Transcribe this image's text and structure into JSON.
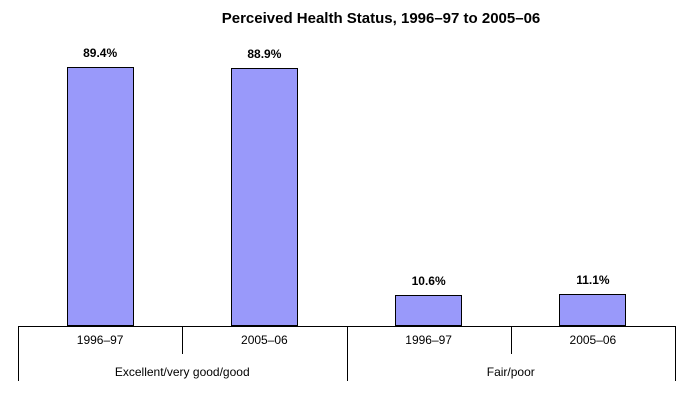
{
  "chart_data": {
    "type": "bar",
    "title": "Perceived Health Status, 1996–97 to 2005–06",
    "unit": "%",
    "ylim": [
      0,
      100
    ],
    "grid": false,
    "legend": null,
    "y_axis_visible": false,
    "bar_color": "#9999FA",
    "bar_border_color": "#000000",
    "groups": [
      {
        "label": "Excellent/very good/good",
        "bars": [
          {
            "period": "1996–97",
            "value": 89.4,
            "label": "89.4%"
          },
          {
            "period": "2005–06",
            "value": 88.9,
            "label": "88.9%"
          }
        ]
      },
      {
        "label": "Fair/poor",
        "bars": [
          {
            "period": "1996–97",
            "value": 10.6,
            "label": "10.6%"
          },
          {
            "period": "2005–06",
            "value": 11.1,
            "label": "11.1%"
          }
        ]
      }
    ]
  }
}
